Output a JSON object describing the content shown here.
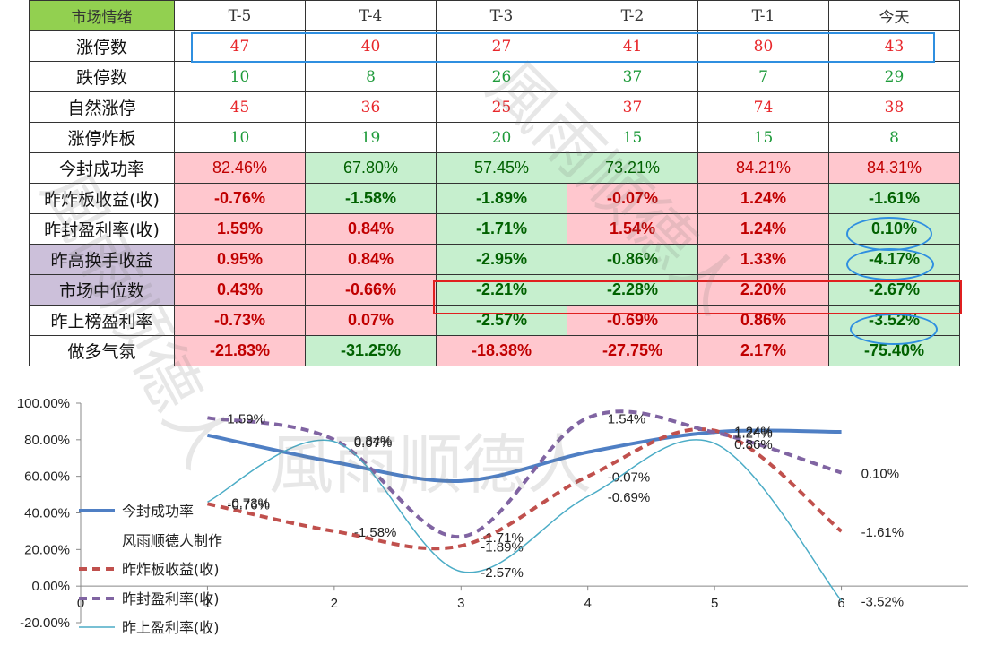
{
  "table": {
    "header": [
      "市场情绪",
      "T-5",
      "T-4",
      "T-3",
      "T-2",
      "T-1",
      "今天"
    ],
    "rows": [
      {
        "label": "涨停数",
        "values": [
          "47",
          "40",
          "27",
          "41",
          "80",
          "43"
        ],
        "style": "serif",
        "colors": [
          "red",
          "red",
          "red",
          "red",
          "red",
          "red"
        ],
        "bgs": [
          "",
          "",
          "",
          "",
          "",
          ""
        ]
      },
      {
        "label": "跌停数",
        "values": [
          "10",
          "8",
          "26",
          "37",
          "7",
          "29"
        ],
        "style": "serif",
        "colors": [
          "green",
          "green",
          "green",
          "green",
          "green",
          "green"
        ],
        "bgs": [
          "",
          "",
          "",
          "",
          "",
          ""
        ]
      },
      {
        "label": "自然涨停",
        "values": [
          "45",
          "36",
          "25",
          "37",
          "74",
          "38"
        ],
        "style": "serif",
        "colors": [
          "red",
          "red",
          "red",
          "red",
          "red",
          "red"
        ],
        "bgs": [
          "",
          "",
          "",
          "",
          "",
          ""
        ]
      },
      {
        "label": "涨停炸板",
        "values": [
          "10",
          "19",
          "20",
          "15",
          "15",
          "8"
        ],
        "style": "serif",
        "colors": [
          "green",
          "green",
          "green",
          "green",
          "green",
          "green"
        ],
        "bgs": [
          "",
          "",
          "",
          "",
          "",
          ""
        ]
      },
      {
        "label": "今封成功率",
        "values": [
          "82.46%",
          "67.80%",
          "57.45%",
          "73.21%",
          "84.21%",
          "84.31%"
        ],
        "style": "sans",
        "colors": [
          "dark-red",
          "dark-green",
          "dark-green",
          "dark-green",
          "dark-red",
          "dark-red"
        ],
        "bgs": [
          "pink",
          "green",
          "green",
          "green",
          "pink",
          "pink"
        ]
      },
      {
        "label": "昨炸板收益(收)",
        "values": [
          "-0.76%",
          "-1.58%",
          "-1.89%",
          "-0.07%",
          "1.24%",
          "-1.61%"
        ],
        "style": "sans bold",
        "colors": [
          "dark-red",
          "dark-green",
          "dark-green",
          "dark-red",
          "dark-red",
          "dark-green"
        ],
        "bgs": [
          "pink",
          "green",
          "green",
          "pink",
          "pink",
          "green"
        ]
      },
      {
        "label": "昨封盈利率(收)",
        "values": [
          "1.59%",
          "0.84%",
          "-1.71%",
          "1.54%",
          "1.24%",
          "0.10%"
        ],
        "style": "sans bold",
        "colors": [
          "dark-red",
          "dark-red",
          "dark-green",
          "dark-red",
          "dark-red",
          "dark-green"
        ],
        "bgs": [
          "pink",
          "pink",
          "green",
          "pink",
          "pink",
          "green"
        ]
      },
      {
        "label": "昨高换手收益",
        "values": [
          "0.95%",
          "0.84%",
          "-2.95%",
          "-0.86%",
          "1.33%",
          "-4.17%"
        ],
        "style": "sans bold",
        "colors": [
          "dark-red",
          "dark-red",
          "dark-green",
          "dark-green",
          "dark-red",
          "dark-green"
        ],
        "bgs": [
          "pink",
          "pink",
          "green",
          "green",
          "pink",
          "green"
        ],
        "label_bg": "purple"
      },
      {
        "label": "市场中位数",
        "values": [
          "0.43%",
          "-0.66%",
          "-2.21%",
          "-2.28%",
          "2.20%",
          "-2.67%"
        ],
        "style": "sans bold",
        "colors": [
          "dark-red",
          "dark-red",
          "dark-green",
          "dark-green",
          "dark-red",
          "dark-green"
        ],
        "bgs": [
          "pink",
          "pink",
          "green",
          "green",
          "pink",
          "green"
        ],
        "label_bg": "purple"
      },
      {
        "label": "昨上榜盈利率",
        "values": [
          "-0.73%",
          "0.07%",
          "-2.57%",
          "-0.69%",
          "0.86%",
          "-3.52%"
        ],
        "style": "sans bold",
        "colors": [
          "dark-red",
          "dark-red",
          "dark-green",
          "dark-red",
          "dark-red",
          "dark-green"
        ],
        "bgs": [
          "pink",
          "pink",
          "green",
          "pink",
          "pink",
          "green"
        ]
      },
      {
        "label": "做多气氛",
        "values": [
          "-21.83%",
          "-31.25%",
          "-18.38%",
          "-27.75%",
          "2.17%",
          "-75.40%"
        ],
        "style": "sans bold",
        "colors": [
          "dark-red",
          "dark-green",
          "dark-red",
          "dark-red",
          "dark-red",
          "dark-green"
        ],
        "bgs": [
          "pink",
          "green",
          "pink",
          "pink",
          "pink",
          "green"
        ]
      }
    ]
  },
  "watermark": "風雨顺德人",
  "chart_data": {
    "type": "line",
    "x_ticks": [
      "0",
      "1",
      "2",
      "3",
      "4",
      "5",
      "6"
    ],
    "y_ticks": [
      "100.00%",
      "80.00%",
      "60.00%",
      "40.00%",
      "20.00%",
      "0.00%",
      "-20.00%"
    ],
    "ylim": [
      -20,
      100
    ],
    "xlim": [
      0,
      7
    ],
    "legend_note": "风雨顺德人制作",
    "series": [
      {
        "name": "今封成功率",
        "color": "#4f7fc4",
        "dash": "",
        "width": 4,
        "x": [
          1,
          2,
          3,
          4,
          5,
          6
        ],
        "y": [
          82.46,
          67.8,
          57.45,
          73.21,
          84.21,
          84.31
        ],
        "labels": []
      },
      {
        "name": "昨炸板收益(收)",
        "color": "#c0504d",
        "dash": "9,6",
        "width": 4,
        "x": [
          1,
          2,
          3,
          4,
          5,
          6
        ],
        "y": [
          45,
          30,
          22,
          60,
          85,
          30
        ],
        "labels": [
          "-0.76%",
          "-1.58%",
          "-1.89%",
          "-0.07%",
          "1.24%",
          "-1.61%"
        ]
      },
      {
        "name": "昨封盈利率(收)",
        "color": "#8064a2",
        "dash": "9,6",
        "width": 4,
        "x": [
          1,
          2,
          3,
          4,
          5,
          6
        ],
        "y": [
          92,
          80,
          27,
          92,
          84,
          62
        ],
        "labels": [
          "1.59%",
          "0.84%",
          "-1.71%",
          "1.54%",
          "1.24%",
          "0.10%"
        ]
      },
      {
        "name": "昨上盈利率(收)",
        "color": "#4bacc6",
        "dash": "",
        "width": 1.5,
        "x": [
          1,
          2,
          3,
          4,
          5,
          6
        ],
        "y": [
          46,
          79,
          8,
          49,
          78,
          -8
        ],
        "labels": [
          "-0.73%",
          "0.07%",
          "-2.57%",
          "-0.69%",
          "0.86%",
          "-3.52%"
        ]
      }
    ]
  }
}
